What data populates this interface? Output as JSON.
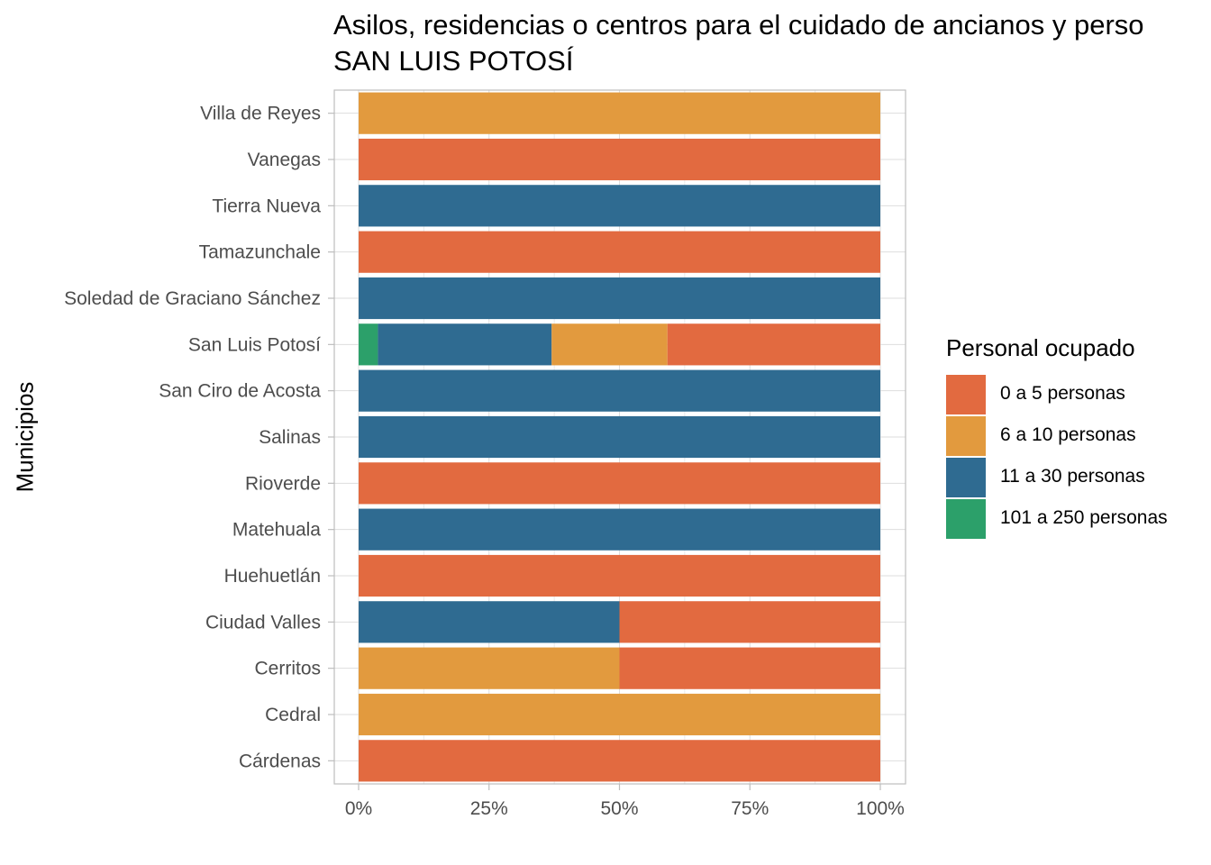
{
  "chart_data": {
    "type": "bar",
    "orientation": "horizontal",
    "stacked": "percent",
    "title": "Asilos, residencias o centros para el cuidado de ancianos y perso",
    "subtitle": "SAN LUIS POTOSÍ",
    "xlabel": "",
    "ylabel": "Municipios",
    "xlim": [
      0,
      1
    ],
    "xticks": [
      "0%",
      "25%",
      "50%",
      "75%",
      "100%"
    ],
    "grid": true,
    "legend": {
      "title": "Personal ocupado",
      "position": "right"
    },
    "categories": [
      "Villa de Reyes",
      "Vanegas",
      "Tierra Nueva",
      "Tamazunchale",
      "Soledad de Graciano Sánchez",
      "San Luis Potosí",
      "San Ciro de Acosta",
      "Salinas",
      "Rioverde",
      "Matehuala",
      "Huehuetlán",
      "Ciudad Valles",
      "Cerritos",
      "Cedral",
      "Cárdenas"
    ],
    "series": [
      {
        "name": "101 a 250 personas",
        "color": "#2CA06A",
        "values": [
          0,
          0,
          0,
          0,
          0,
          0.037,
          0,
          0,
          0,
          0,
          0,
          0,
          0,
          0,
          0
        ]
      },
      {
        "name": "11 a 30 personas",
        "color": "#2F6B91",
        "values": [
          0,
          0,
          1,
          0,
          1,
          0.333,
          1,
          1,
          0,
          1,
          0,
          0.5,
          0,
          0,
          0
        ]
      },
      {
        "name": "6 a 10 personas",
        "color": "#E29A3E",
        "values": [
          1,
          0,
          0,
          0,
          0,
          0.222,
          0,
          0,
          0,
          0,
          0,
          0,
          0.5,
          1,
          0
        ]
      },
      {
        "name": "0 a 5 personas",
        "color": "#E26A40",
        "values": [
          0,
          1,
          0,
          1,
          0,
          0.408,
          0,
          0,
          1,
          0,
          1,
          0.5,
          0.5,
          0,
          1
        ]
      }
    ],
    "legend_order": [
      "0 a 5 personas",
      "6 a 10 personas",
      "11 a 30 personas",
      "101 a 250 personas"
    ]
  }
}
